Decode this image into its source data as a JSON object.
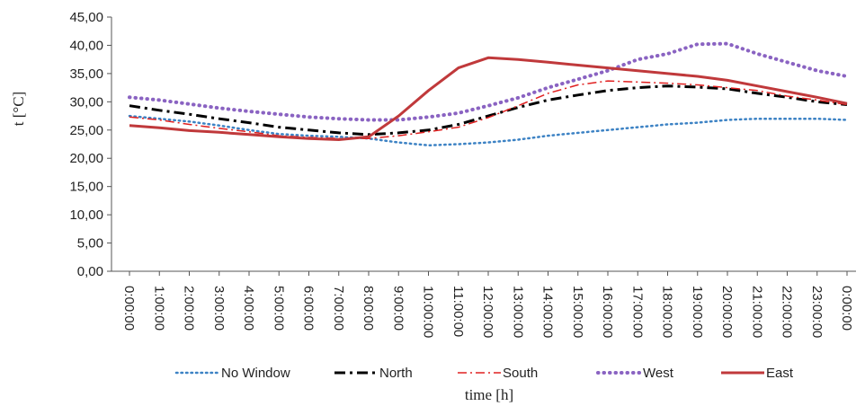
{
  "chart_data": {
    "type": "line",
    "title": "",
    "xlabel": "time [h]",
    "ylabel": "t [°C]",
    "ylim": [
      0,
      45
    ],
    "y_ticks": [
      "0,00",
      "5,00",
      "10,00",
      "15,00",
      "20,00",
      "25,00",
      "30,00",
      "35,00",
      "40,00",
      "45,00"
    ],
    "grid": false,
    "legend_position": "bottom",
    "categories": [
      "0:00:00",
      "1:00:00",
      "2:00:00",
      "3:00:00",
      "4:00:00",
      "5:00:00",
      "6:00:00",
      "7:00:00",
      "8:00:00",
      "9:00:00",
      "10:00:00",
      "11:00:00",
      "12:00:00",
      "13:00:00",
      "14:00:00",
      "15:00:00",
      "16:00:00",
      "17:00:00",
      "18:00:00",
      "19:00:00",
      "20:00:00",
      "21:00:00",
      "22:00:00",
      "23:00:00",
      "0:00:00"
    ],
    "series": [
      {
        "name": "No Window",
        "color": "#3c82c4",
        "style": "dotted",
        "values": [
          27.5,
          27.0,
          26.5,
          25.8,
          25.0,
          24.3,
          24.0,
          23.8,
          23.5,
          22.8,
          22.3,
          22.5,
          22.8,
          23.3,
          24.0,
          24.5,
          25.0,
          25.5,
          26.0,
          26.3,
          26.8,
          27.0,
          27.0,
          27.0,
          26.8
        ]
      },
      {
        "name": "North",
        "color": "#000000",
        "style": "dashdot",
        "values": [
          29.3,
          28.5,
          27.8,
          27.0,
          26.3,
          25.5,
          25.0,
          24.5,
          24.2,
          24.5,
          25.0,
          26.0,
          27.5,
          29.0,
          30.3,
          31.2,
          32.0,
          32.5,
          32.8,
          32.6,
          32.3,
          31.5,
          30.8,
          30.0,
          29.5
        ]
      },
      {
        "name": "South",
        "color": "#e02020",
        "style": "dashdot",
        "values": [
          27.3,
          26.8,
          26.0,
          25.3,
          24.7,
          24.0,
          23.7,
          23.5,
          23.5,
          24.0,
          24.7,
          25.5,
          27.2,
          29.3,
          31.5,
          33.0,
          33.7,
          33.5,
          33.3,
          33.0,
          32.5,
          32.0,
          31.0,
          30.3,
          29.5
        ]
      },
      {
        "name": "West",
        "color": "#8a63c2",
        "style": "dotted-bold",
        "values": [
          30.8,
          30.3,
          29.6,
          28.9,
          28.3,
          27.8,
          27.3,
          27.0,
          26.8,
          26.8,
          27.3,
          28.0,
          29.3,
          30.7,
          32.5,
          34.0,
          35.5,
          37.5,
          38.5,
          40.2,
          40.3,
          38.5,
          37.0,
          35.5,
          34.5
        ]
      },
      {
        "name": "East",
        "color": "#c0393b",
        "style": "solid",
        "values": [
          25.8,
          25.4,
          24.9,
          24.6,
          24.2,
          23.8,
          23.5,
          23.3,
          23.8,
          27.5,
          32.0,
          36.0,
          37.8,
          37.5,
          37.0,
          36.5,
          36.0,
          35.5,
          35.0,
          34.5,
          33.8,
          32.8,
          31.8,
          30.8,
          29.7
        ]
      }
    ]
  }
}
